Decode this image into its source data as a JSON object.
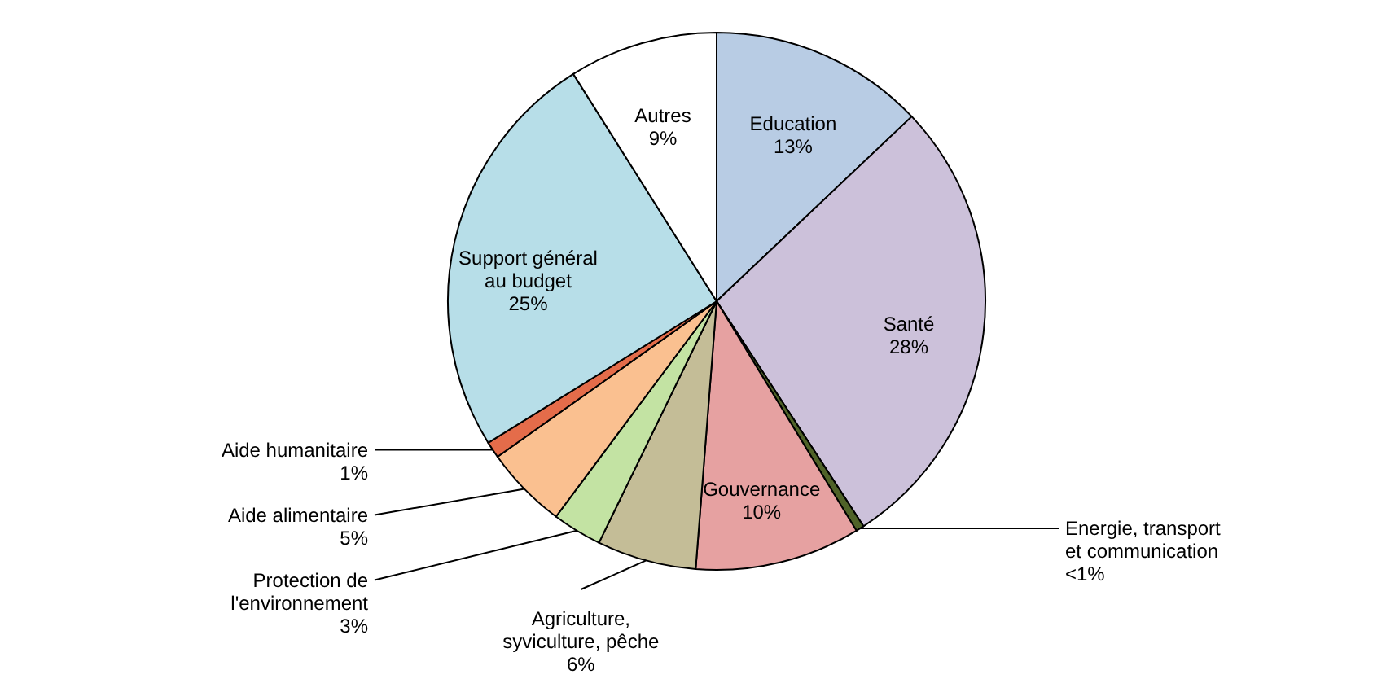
{
  "chart_data": {
    "type": "pie",
    "categories": [
      "Education",
      "Santé",
      "Energie, transport et communication",
      "Gouvernance",
      "Agriculture, syviculture, pêche",
      "Protection de l'environnement",
      "Aide alimentaire",
      "Aide humanitaire",
      "Support général au budget",
      "Autres"
    ],
    "values": [
      13,
      28,
      0.5,
      10,
      6,
      3,
      5,
      1,
      25,
      9
    ],
    "value_labels": [
      "13%",
      "28%",
      "<1%",
      "10%",
      "6%",
      "3%",
      "5%",
      "1%",
      "25%",
      "9%"
    ],
    "colors": [
      "#b8cce4",
      "#ccc1da",
      "#4f6228",
      "#e6a1a1",
      "#c4bd97",
      "#c3e3a3",
      "#fac090",
      "#e46c4a",
      "#b7dee8",
      "#ffffff"
    ]
  }
}
